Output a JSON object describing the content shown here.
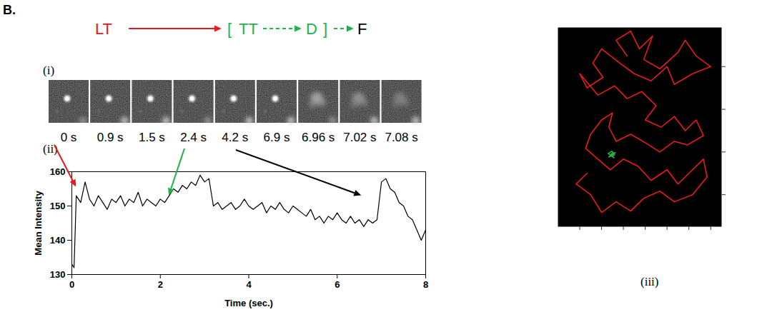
{
  "panel_label": "B.",
  "scheme": {
    "items": [
      {
        "text": "LT",
        "color": "#e8191f"
      },
      {
        "text": "[",
        "color": "#22b14c"
      },
      {
        "text": "TT",
        "color": "#22b14c"
      },
      {
        "text": "D",
        "color": "#22b14c"
      },
      {
        "text": "]",
        "color": "#22b14c"
      },
      {
        "text": "F",
        "color": "#000000"
      }
    ]
  },
  "subpanels": [
    "(i)",
    "(ii)",
    "(iii)"
  ],
  "frames": {
    "labels": [
      "0 s",
      "0.9 s",
      "1.5 s",
      "2.4 s",
      "4.2 s",
      "6.9 s",
      "6.96 s",
      "7.02 s",
      "7.08 s"
    ]
  },
  "chart_data": [
    {
      "type": "line",
      "x_label": "Time (sec.)",
      "y_label": "Mean Intensity",
      "x": [
        0,
        0.05,
        0.1,
        0.2,
        0.3,
        0.4,
        0.5,
        0.6,
        0.7,
        0.8,
        0.9,
        1.0,
        1.1,
        1.2,
        1.3,
        1.4,
        1.5,
        1.6,
        1.7,
        1.8,
        1.9,
        2.0,
        2.1,
        2.2,
        2.3,
        2.4,
        2.5,
        2.6,
        2.7,
        2.8,
        2.9,
        3.0,
        3.1,
        3.2,
        3.3,
        3.4,
        3.5,
        3.6,
        3.7,
        3.8,
        3.9,
        4.0,
        4.1,
        4.2,
        4.3,
        4.4,
        4.5,
        4.6,
        4.7,
        4.8,
        4.9,
        5.0,
        5.1,
        5.2,
        5.3,
        5.4,
        5.5,
        5.6,
        5.7,
        5.8,
        5.9,
        6.0,
        6.1,
        6.2,
        6.3,
        6.4,
        6.5,
        6.6,
        6.7,
        6.8,
        6.9,
        7.0,
        7.1,
        7.2,
        7.3,
        7.4,
        7.5,
        7.6,
        7.7,
        7.8,
        7.9,
        8.0
      ],
      "series": [
        {
          "color": "#000000",
          "values": [
            133,
            132,
            153,
            151,
            157,
            152,
            150,
            153,
            151,
            149,
            152,
            151,
            153,
            150,
            152,
            151,
            154,
            150,
            152,
            151,
            150,
            152,
            151,
            153,
            155,
            154,
            156,
            155,
            157,
            156,
            159,
            157,
            158,
            150,
            151,
            149,
            150,
            151,
            149,
            150,
            152,
            150,
            149,
            150,
            151,
            148,
            150,
            149,
            151,
            149,
            148,
            150,
            149,
            148,
            147,
            149,
            146,
            147,
            145,
            147,
            146,
            148,
            146,
            145,
            147,
            145,
            146,
            144,
            146,
            145,
            146,
            157,
            158,
            155,
            154,
            151,
            150,
            147,
            146,
            143,
            140,
            143
          ]
        }
      ],
      "xlim": [
        0,
        8
      ],
      "xticks": [
        0,
        2,
        4,
        6,
        8
      ],
      "ylim": [
        130,
        160
      ],
      "yticks": [
        130,
        140,
        150,
        160
      ],
      "grid": false,
      "arrows": [
        {
          "x": 0.1,
          "y": 155.5,
          "color": "#e8191f"
        },
        {
          "x": 2.2,
          "y": 153,
          "color": "#22b14c"
        },
        {
          "x": 6.55,
          "y": 153,
          "color": "#000000"
        }
      ]
    },
    {
      "type": "line",
      "series": [
        {
          "color": "#e8191f",
          "x": [
            95,
            80,
            100,
            112,
            130,
            118,
            140,
            165,
            175,
            190,
            210,
            185,
            160,
            150,
            128,
            105,
            85,
            60,
            48,
            62,
            40,
            30,
            55,
            78,
            95,
            115,
            135,
            120,
            142,
            160,
            175,
            190,
            200,
            178,
            160,
            140,
            120,
            100,
            80,
            70,
            75,
            60,
            45,
            38,
            55,
            72,
            90,
            110,
            128,
            150,
            165,
            180,
            200,
            205,
            185,
            160,
            140,
            118,
            100,
            80,
            60,
            45,
            25,
            40
          ],
          "values": [
            240,
            262,
            275,
            250,
            268,
            235,
            222,
            245,
            262,
            240,
            225,
            215,
            200,
            225,
            205,
            215,
            230,
            250,
            230,
            210,
            195,
            215,
            185,
            198,
            180,
            190,
            170,
            150,
            140,
            155,
            135,
            150,
            128,
            115,
            120,
            105,
            118,
            130,
            120,
            140,
            160,
            150,
            130,
            110,
            95,
            80,
            95,
            85,
            65,
            80,
            60,
            75,
            95,
            70,
            45,
            35,
            50,
            40,
            22,
            35,
            20,
            45,
            60,
            75
          ]
        },
        {
          "color": "#22b14c",
          "x": [
            72,
            76,
            70,
            78,
            74,
            69,
            77,
            73,
            79,
            71,
            75
          ],
          "values": [
            100,
            104,
            98,
            101,
            106,
            103,
            97,
            102,
            104,
            99,
            100
          ]
        }
      ],
      "xlim": [
        0,
        225
      ],
      "xticks": [
        30,
        60,
        90,
        120,
        150,
        180,
        210
      ],
      "ylim": [
        0,
        280
      ],
      "yticks": [
        45,
        105,
        165,
        225
      ],
      "tick_labels": false
    }
  ]
}
